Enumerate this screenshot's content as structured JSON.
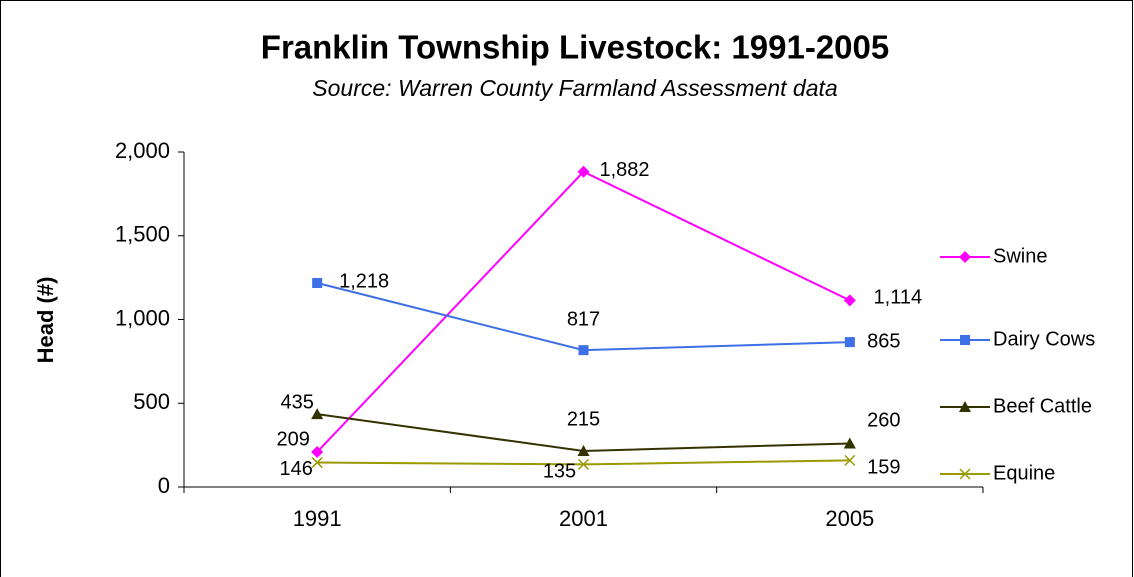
{
  "chart_data": {
    "type": "line",
    "title": "Franklin Township Livestock: 1991-2005",
    "subtitle": "Source: Warren County Farmland Assessment data",
    "y_label": "Head (#)",
    "categories": [
      "1991",
      "2001",
      "2005"
    ],
    "ylim": [
      0,
      2000
    ],
    "yticks": [
      0,
      500,
      {
        "value": 1000,
        "label": "1,000"
      },
      {
        "value": 1500,
        "label": "1,500"
      },
      {
        "value": 2000,
        "label": "2,000"
      }
    ],
    "legend": "right",
    "series": [
      {
        "name": "Swine",
        "color": "#ff00ff",
        "marker": "diamond",
        "values": [
          209,
          1882,
          1114
        ],
        "value_labels": [
          "209",
          "1,882",
          "1,114"
        ]
      },
      {
        "name": "Dairy Cows",
        "color": "#3d6fe6",
        "marker": "square",
        "values": [
          1218,
          817,
          865
        ],
        "value_labels": [
          "1,218",
          "817",
          "865"
        ]
      },
      {
        "name": "Beef Cattle",
        "color": "#333300",
        "marker": "triangle",
        "values": [
          435,
          215,
          260
        ],
        "value_labels": [
          "435",
          "215",
          "260"
        ]
      },
      {
        "name": "Equine",
        "color": "#999900",
        "marker": "x",
        "values": [
          146,
          135,
          159
        ],
        "value_labels": [
          "146",
          "135",
          "159"
        ]
      }
    ]
  }
}
